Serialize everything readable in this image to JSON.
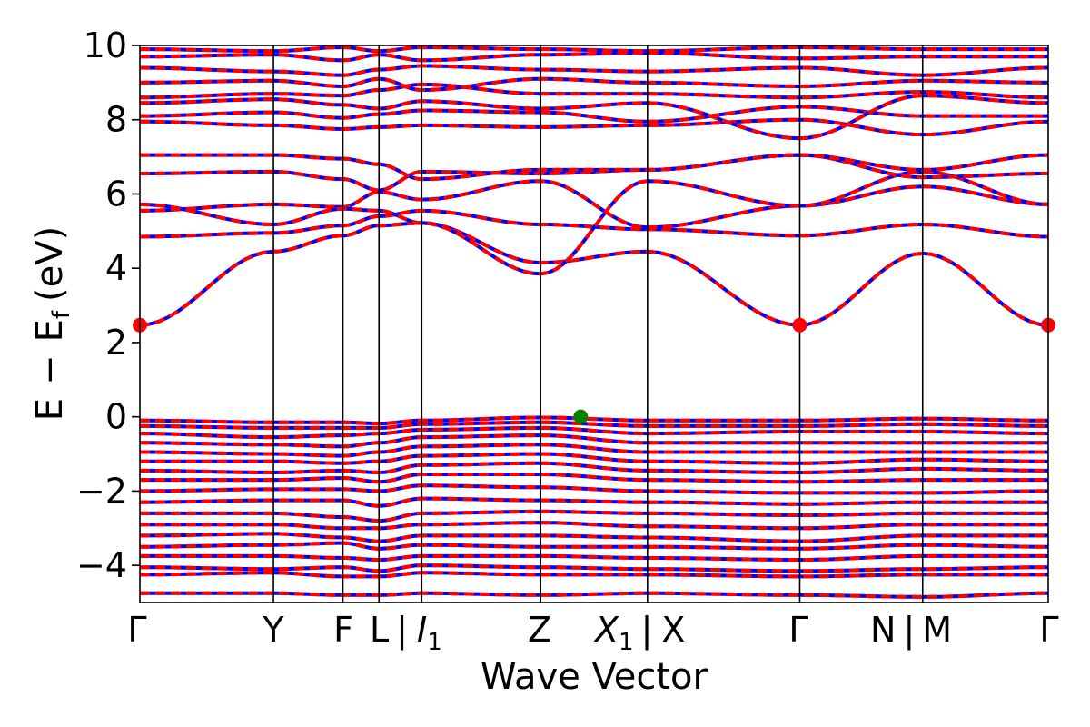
{
  "chart_data": {
    "type": "line",
    "title": "",
    "xlabel": "Wave Vector",
    "ylabel": "E − E_f (eV)",
    "ylabel_parts": {
      "e": "E",
      "minus": "−",
      "ef_main": "E",
      "ef_sub": "f",
      "unit": "(eV)"
    },
    "ylim": [
      -5,
      10
    ],
    "yticks": [
      -4,
      -2,
      0,
      2,
      4,
      6,
      8,
      10
    ],
    "ytick_labels": [
      "−4",
      "−2",
      "0",
      "2",
      "4",
      "6",
      "8",
      "10"
    ],
    "grid": false,
    "legend": "none",
    "kpath": [
      {
        "label": "Γ",
        "pos": 0.0
      },
      {
        "label": "Y",
        "pos": 1.0
      },
      {
        "label": "F",
        "pos": 1.52
      },
      {
        "label": "L",
        "pos": 1.79
      },
      {
        "label": "I₁",
        "pos": 2.11
      },
      {
        "label": "Z",
        "pos": 3.0
      },
      {
        "label": "X₁ | X",
        "pos": 3.8
      },
      {
        "label": "Γ",
        "pos": 4.94
      },
      {
        "label": "N | M",
        "pos": 5.86
      },
      {
        "label": "Γ",
        "pos": 6.8
      }
    ],
    "tick_label_text": {
      "gamma": "Γ",
      "y": "Y",
      "f": "F",
      "l": "L",
      "sep": "|",
      "i_main": "I",
      "one": "1",
      "z": "Z",
      "x1_main": "X",
      "x": "X",
      "n": "N",
      "m": "M"
    },
    "xlim": [
      0,
      6.8
    ],
    "band_gap": {
      "cbm": {
        "x": 0.0,
        "y": 2.47
      },
      "cbm_points": [
        {
          "x": 0.0,
          "y": 2.47
        },
        {
          "x": 4.94,
          "y": 2.47
        },
        {
          "x": 6.8,
          "y": 2.47
        }
      ],
      "vbm": {
        "x": 3.3,
        "y": 0.0
      }
    },
    "series_styles": {
      "spin_up_color": "#0000ff",
      "spin_down_color": "#ff0000",
      "cbm_color": "#ff0000",
      "vbm_color": "#008000"
    },
    "conduction_band_nodes": [
      [
        2.47,
        4.45,
        4.88,
        5.15,
        5.22,
        4.15,
        4.45,
        2.47,
        4.4,
        2.47
      ],
      [
        4.85,
        4.95,
        5.15,
        5.4,
        5.55,
        5.18,
        5.05,
        4.88,
        5.18,
        4.85
      ],
      [
        5.55,
        5.72,
        5.65,
        6.05,
        5.85,
        6.35,
        5.1,
        5.68,
        6.2,
        5.72
      ],
      [
        5.72,
        5.18,
        5.6,
        5.55,
        5.22,
        3.85,
        6.35,
        5.68,
        6.6,
        5.72
      ],
      [
        6.55,
        6.6,
        6.4,
        6.1,
        6.6,
        6.55,
        6.65,
        7.05,
        6.45,
        6.55
      ],
      [
        7.05,
        7.05,
        6.95,
        6.8,
        6.4,
        6.65,
        6.65,
        7.05,
        6.65,
        7.05
      ],
      [
        7.95,
        7.85,
        7.75,
        7.8,
        7.85,
        7.8,
        7.85,
        8.0,
        7.6,
        7.95
      ],
      [
        8.1,
        8.2,
        8.05,
        8.15,
        8.25,
        8.2,
        7.95,
        8.35,
        8.1,
        8.1
      ],
      [
        8.45,
        8.55,
        8.4,
        8.3,
        8.5,
        8.3,
        8.45,
        7.5,
        8.65,
        8.45
      ],
      [
        8.6,
        8.7,
        8.65,
        8.8,
        8.95,
        8.7,
        8.7,
        8.6,
        8.75,
        8.6
      ],
      [
        9.0,
        9.05,
        8.9,
        9.1,
        8.8,
        9.1,
        9.0,
        8.9,
        9.05,
        9.0
      ],
      [
        9.4,
        9.3,
        9.2,
        9.35,
        9.45,
        9.35,
        9.3,
        9.4,
        9.2,
        9.4
      ],
      [
        9.7,
        9.75,
        9.6,
        9.75,
        9.6,
        9.75,
        9.8,
        9.65,
        9.7,
        9.7
      ],
      [
        9.9,
        9.85,
        9.95,
        9.85,
        9.95,
        9.9,
        9.85,
        9.95,
        9.9,
        9.9
      ]
    ],
    "valence_band_nodes": [
      [
        -0.1,
        -0.15,
        -0.15,
        -0.18,
        -0.1,
        -0.02,
        -0.1,
        -0.1,
        -0.05,
        -0.1
      ],
      [
        -0.25,
        -0.3,
        -0.3,
        -0.3,
        -0.2,
        -0.15,
        -0.25,
        -0.25,
        -0.2,
        -0.25
      ],
      [
        -0.45,
        -0.55,
        -0.5,
        -0.45,
        -0.35,
        -0.3,
        -0.45,
        -0.4,
        -0.4,
        -0.45
      ],
      [
        -0.7,
        -0.75,
        -0.8,
        -0.7,
        -0.55,
        -0.5,
        -0.7,
        -0.7,
        -0.7,
        -0.7
      ],
      [
        -0.95,
        -1.0,
        -1.05,
        -0.95,
        -0.8,
        -0.75,
        -0.95,
        -0.95,
        -0.95,
        -0.95
      ],
      [
        -1.2,
        -1.2,
        -1.25,
        -1.2,
        -1.05,
        -1.0,
        -1.2,
        -1.25,
        -1.15,
        -1.2
      ],
      [
        -1.45,
        -1.5,
        -1.45,
        -1.5,
        -1.3,
        -1.25,
        -1.45,
        -1.5,
        -1.4,
        -1.45
      ],
      [
        -1.7,
        -1.7,
        -1.65,
        -1.75,
        -1.55,
        -1.55,
        -1.7,
        -1.75,
        -1.7,
        -1.7
      ],
      [
        -2.0,
        -1.95,
        -1.95,
        -2.0,
        -1.85,
        -1.9,
        -2.0,
        -2.05,
        -2.05,
        -2.0
      ],
      [
        -2.3,
        -2.25,
        -2.25,
        -2.4,
        -2.2,
        -2.25,
        -2.3,
        -2.35,
        -2.3,
        -2.3
      ],
      [
        -2.6,
        -2.6,
        -2.7,
        -2.8,
        -2.6,
        -2.55,
        -2.6,
        -2.65,
        -2.6,
        -2.6
      ],
      [
        -2.9,
        -2.9,
        -3.0,
        -3.0,
        -2.9,
        -2.85,
        -2.95,
        -3.0,
        -2.9,
        -2.9
      ],
      [
        -3.2,
        -3.15,
        -3.25,
        -3.35,
        -3.2,
        -3.2,
        -3.25,
        -3.35,
        -3.2,
        -3.2
      ],
      [
        -3.5,
        -3.45,
        -3.4,
        -3.55,
        -3.45,
        -3.5,
        -3.5,
        -3.55,
        -3.45,
        -3.5
      ],
      [
        -3.75,
        -3.75,
        -3.8,
        -3.85,
        -3.75,
        -3.75,
        -3.8,
        -3.85,
        -3.75,
        -3.75
      ],
      [
        -4.05,
        -4.1,
        -4.05,
        -4.15,
        -4.0,
        -4.05,
        -4.1,
        -4.15,
        -4.1,
        -4.05
      ],
      [
        -4.25,
        -4.2,
        -4.3,
        -4.3,
        -4.2,
        -4.25,
        -4.25,
        -4.3,
        -4.25,
        -4.25
      ],
      [
        -4.75,
        -4.75,
        -4.8,
        -4.8,
        -4.75,
        -4.8,
        -4.75,
        -4.8,
        -4.85,
        -4.75
      ]
    ]
  }
}
